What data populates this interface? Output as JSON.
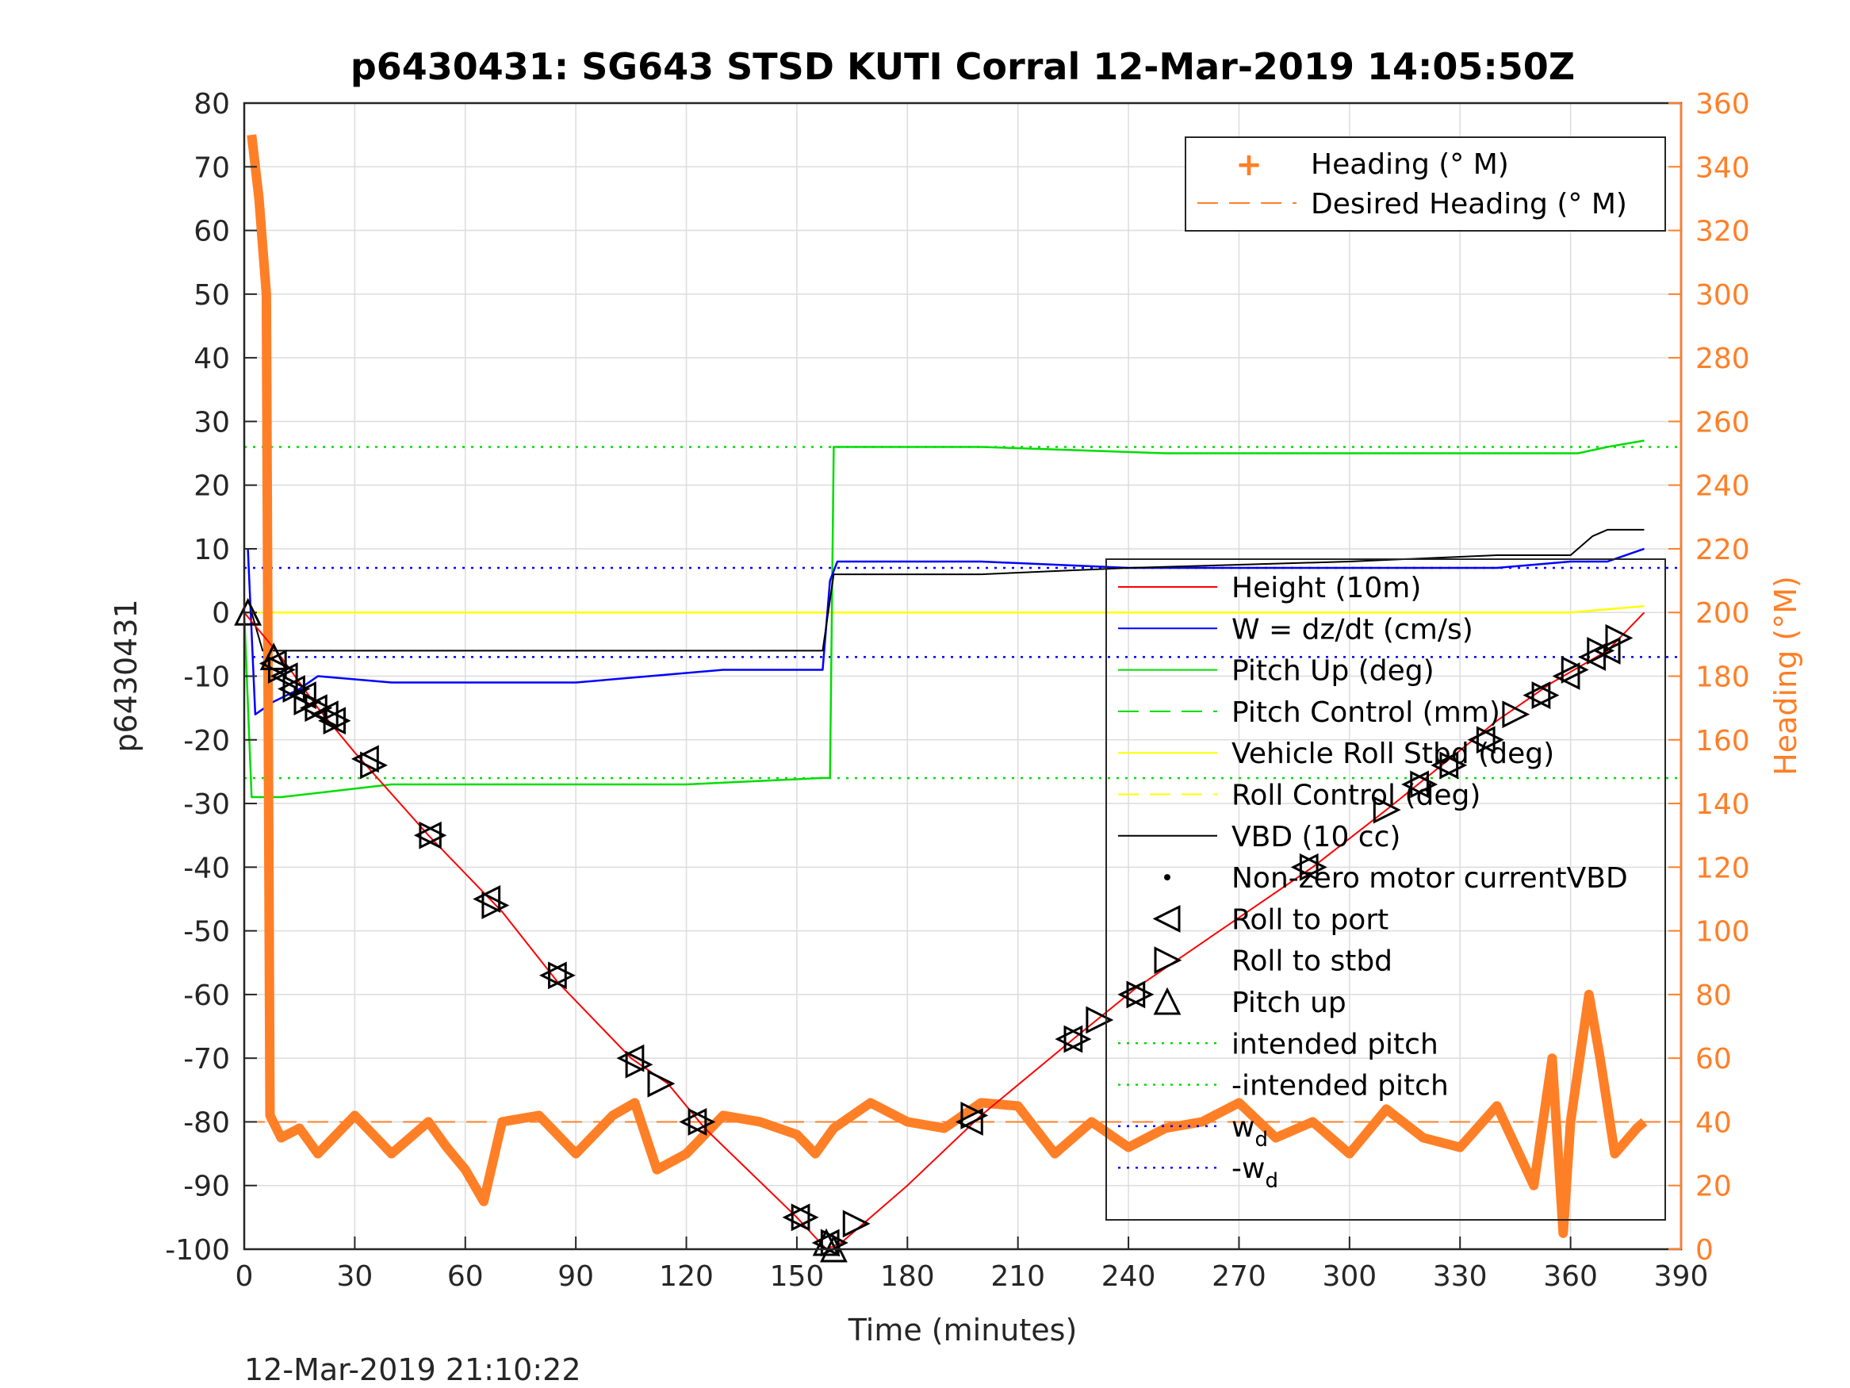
{
  "chart_data": {
    "type": "line",
    "title": "p6430431: SG643 STSD KUTI Corral 12-Mar-2019 14:05:50Z",
    "xlabel": "Time (minutes)",
    "ylabel": "p6430431",
    "y2label": "Heading (°M)",
    "footer_timestamp": "12-Mar-2019 21:10:22",
    "xlim": [
      0,
      390
    ],
    "ylim": [
      -100,
      80
    ],
    "y2lim": [
      0,
      360
    ],
    "xticks": [
      0,
      30,
      60,
      90,
      120,
      150,
      180,
      210,
      240,
      270,
      300,
      330,
      360,
      390
    ],
    "yticks": [
      -100,
      -90,
      -80,
      -70,
      -60,
      -50,
      -40,
      -30,
      -20,
      -10,
      0,
      10,
      20,
      30,
      40,
      50,
      60,
      70,
      80
    ],
    "y2ticks": [
      0,
      20,
      40,
      60,
      80,
      100,
      120,
      140,
      160,
      180,
      200,
      220,
      240,
      260,
      280,
      300,
      320,
      340,
      360
    ],
    "grid": true,
    "colors": {
      "height": "#ff0000",
      "w": "#0000ff",
      "pitch": "#00dd00",
      "roll": "#ffff00",
      "vbd": "#000000",
      "heading": "#ff7f27"
    },
    "legend_right_axis": {
      "placement": "top-right",
      "entries": [
        "Heading (° M)",
        "Desired Heading (° M)"
      ]
    },
    "legend_left_axis": {
      "placement": "right",
      "entries": [
        {
          "label": "Height (10m)"
        },
        {
          "label": "W = dz/dt (cm/s)"
        },
        {
          "label": "Pitch Up (deg)"
        },
        {
          "label": "Pitch Control (mm)"
        },
        {
          "label": "Vehicle Roll Stbd (deg)"
        },
        {
          "label": "Roll Control (deg)"
        },
        {
          "label": "VBD (10 cc)"
        },
        {
          "label": "Non-zero motor currentVBD"
        },
        {
          "label": "Roll to port"
        },
        {
          "label": "Roll to stbd"
        },
        {
          "label": "Pitch up"
        },
        {
          "label": "intended pitch"
        },
        {
          "label": "-intended pitch"
        },
        {
          "label": "w",
          "sub": "d"
        },
        {
          "label": "-w",
          "sub": "d"
        }
      ]
    },
    "reference_lines": {
      "intended_pitch": 26,
      "neg_intended_pitch": -26,
      "w_d": 7,
      "neg_w_d": -7,
      "desired_heading": 40
    },
    "series": {
      "height": [
        [
          0,
          0
        ],
        [
          10,
          -7
        ],
        [
          20,
          -15
        ],
        [
          30,
          -22
        ],
        [
          50,
          -35
        ],
        [
          70,
          -47
        ],
        [
          85,
          -58
        ],
        [
          105,
          -70
        ],
        [
          115,
          -74
        ],
        [
          125,
          -81
        ],
        [
          150,
          -95
        ],
        [
          158,
          -100
        ],
        [
          162,
          -99
        ],
        [
          168,
          -96
        ],
        [
          180,
          -90
        ],
        [
          200,
          -79
        ],
        [
          225,
          -67
        ],
        [
          242,
          -59
        ],
        [
          290,
          -40
        ],
        [
          310,
          -31
        ],
        [
          340,
          -17
        ],
        [
          355,
          -11
        ],
        [
          370,
          -6
        ],
        [
          380,
          0
        ]
      ],
      "w": [
        [
          1,
          10
        ],
        [
          3,
          -16
        ],
        [
          8,
          -14
        ],
        [
          15,
          -12
        ],
        [
          20,
          -10
        ],
        [
          40,
          -11
        ],
        [
          60,
          -11
        ],
        [
          90,
          -11
        ],
        [
          110,
          -10
        ],
        [
          130,
          -9
        ],
        [
          150,
          -9
        ],
        [
          157,
          -9
        ],
        [
          159,
          5
        ],
        [
          161,
          8
        ],
        [
          175,
          8
        ],
        [
          200,
          8
        ],
        [
          240,
          7
        ],
        [
          280,
          7
        ],
        [
          310,
          7
        ],
        [
          340,
          7
        ],
        [
          360,
          8
        ],
        [
          370,
          8
        ],
        [
          380,
          10
        ]
      ],
      "pitch": [
        [
          0,
          0
        ],
        [
          2,
          -29
        ],
        [
          10,
          -29
        ],
        [
          40,
          -27
        ],
        [
          80,
          -27
        ],
        [
          120,
          -27
        ],
        [
          157,
          -26
        ],
        [
          159,
          -26
        ],
        [
          160,
          26
        ],
        [
          200,
          26
        ],
        [
          250,
          25
        ],
        [
          300,
          25
        ],
        [
          355,
          25
        ],
        [
          362,
          25
        ],
        [
          370,
          26
        ],
        [
          380,
          27
        ]
      ],
      "roll": [
        [
          0,
          0
        ],
        [
          5,
          0
        ],
        [
          50,
          0
        ],
        [
          100,
          0
        ],
        [
          157,
          0
        ],
        [
          160,
          0
        ],
        [
          200,
          0
        ],
        [
          250,
          0
        ],
        [
          300,
          0
        ],
        [
          340,
          0
        ],
        [
          360,
          0
        ],
        [
          380,
          1
        ]
      ],
      "vbd": [
        [
          0,
          0
        ],
        [
          2,
          0
        ],
        [
          5,
          -6
        ],
        [
          40,
          -6
        ],
        [
          100,
          -6
        ],
        [
          157,
          -6
        ],
        [
          160,
          6
        ],
        [
          200,
          6
        ],
        [
          240,
          7
        ],
        [
          300,
          8
        ],
        [
          340,
          9
        ],
        [
          360,
          9
        ],
        [
          366,
          12
        ],
        [
          370,
          13
        ],
        [
          380,
          13
        ]
      ],
      "heading": [
        [
          2,
          350
        ],
        [
          4,
          330
        ],
        [
          6,
          300
        ],
        [
          7,
          42
        ],
        [
          10,
          35
        ],
        [
          15,
          38
        ],
        [
          20,
          30
        ],
        [
          30,
          42
        ],
        [
          40,
          30
        ],
        [
          50,
          40
        ],
        [
          55,
          32
        ],
        [
          60,
          25
        ],
        [
          65,
          15
        ],
        [
          70,
          40
        ],
        [
          80,
          42
        ],
        [
          90,
          30
        ],
        [
          100,
          42
        ],
        [
          106,
          46
        ],
        [
          112,
          25
        ],
        [
          120,
          30
        ],
        [
          130,
          42
        ],
        [
          140,
          40
        ],
        [
          150,
          36
        ],
        [
          155,
          30
        ],
        [
          160,
          38
        ],
        [
          170,
          46
        ],
        [
          180,
          40
        ],
        [
          190,
          38
        ],
        [
          200,
          46
        ],
        [
          210,
          45
        ],
        [
          220,
          30
        ],
        [
          230,
          40
        ],
        [
          240,
          32
        ],
        [
          250,
          38
        ],
        [
          260,
          40
        ],
        [
          270,
          46
        ],
        [
          280,
          35
        ],
        [
          290,
          40
        ],
        [
          300,
          30
        ],
        [
          310,
          44
        ],
        [
          320,
          35
        ],
        [
          330,
          32
        ],
        [
          340,
          45
        ],
        [
          350,
          20
        ],
        [
          355,
          60
        ],
        [
          358,
          5
        ],
        [
          360,
          40
        ],
        [
          365,
          80
        ],
        [
          368,
          60
        ],
        [
          372,
          30
        ],
        [
          378,
          38
        ],
        [
          380,
          40
        ]
      ],
      "roll_to_port": [
        [
          8,
          -8
        ],
        [
          11,
          -10
        ],
        [
          13,
          -12
        ],
        [
          16,
          -13
        ],
        [
          19,
          -15
        ],
        [
          22,
          -16
        ],
        [
          24,
          -17
        ],
        [
          33,
          -23
        ],
        [
          50,
          -35
        ],
        [
          66,
          -45
        ],
        [
          84,
          -57
        ],
        [
          105,
          -70
        ],
        [
          122,
          -80
        ],
        [
          150,
          -95
        ],
        [
          158,
          -99
        ],
        [
          197,
          -80
        ],
        [
          224,
          -67
        ],
        [
          241,
          -60
        ],
        [
          288,
          -40
        ],
        [
          318,
          -27
        ],
        [
          326,
          -24
        ],
        [
          336,
          -20
        ],
        [
          351,
          -13
        ],
        [
          359,
          -10
        ],
        [
          366,
          -7
        ],
        [
          370,
          -6
        ]
      ],
      "roll_to_stbd": [
        [
          10,
          -9
        ],
        [
          14,
          -12
        ],
        [
          17,
          -14
        ],
        [
          20,
          -15
        ],
        [
          25,
          -17
        ],
        [
          35,
          -24
        ],
        [
          51,
          -35
        ],
        [
          68,
          -46
        ],
        [
          86,
          -57
        ],
        [
          107,
          -71
        ],
        [
          113,
          -74
        ],
        [
          124,
          -80
        ],
        [
          152,
          -95
        ],
        [
          160,
          -99
        ],
        [
          166,
          -96
        ],
        [
          198,
          -79
        ],
        [
          226,
          -67
        ],
        [
          232,
          -64
        ],
        [
          243,
          -60
        ],
        [
          290,
          -40
        ],
        [
          310,
          -31
        ],
        [
          320,
          -27
        ],
        [
          328,
          -24
        ],
        [
          338,
          -20
        ],
        [
          345,
          -16
        ],
        [
          353,
          -13
        ],
        [
          361,
          -9
        ],
        [
          368,
          -6
        ],
        [
          373,
          -4
        ]
      ],
      "pitch_up": [
        [
          1,
          0
        ],
        [
          8,
          -7
        ],
        [
          158,
          -99
        ],
        [
          160,
          -100
        ]
      ]
    }
  }
}
